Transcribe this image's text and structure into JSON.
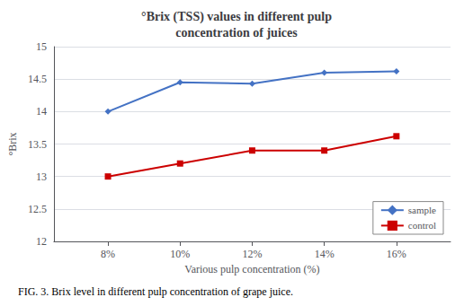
{
  "chart_data": {
    "type": "line",
    "title": "°Brix (TSS) values in different pulp\nconcentration of juices",
    "xlabel": "Various pulp concentration (%)",
    "ylabel": "°Brix",
    "caption": "FIG. 3. Brix level in different pulp concentration of grape juice.",
    "x": [
      8,
      10,
      12,
      14,
      16
    ],
    "series": [
      {
        "name": "sample",
        "color": "#4472C4",
        "marker": "diamond",
        "values": [
          14.0,
          14.45,
          14.43,
          14.6,
          14.62
        ]
      },
      {
        "name": "control",
        "color": "#CC0000",
        "marker": "square",
        "values": [
          13.0,
          13.2,
          13.4,
          13.4,
          13.62
        ]
      }
    ],
    "xlim": [
      6.5,
      17.5
    ],
    "xticks": [
      {
        "value": 8,
        "label": "8%"
      },
      {
        "value": 10,
        "label": "10%"
      },
      {
        "value": 12,
        "label": "12%"
      },
      {
        "value": 14,
        "label": "14%"
      },
      {
        "value": 16,
        "label": "16%"
      }
    ],
    "ylim": [
      12,
      15
    ],
    "yticks": [
      12,
      12.5,
      13,
      13.5,
      14,
      14.5,
      15
    ],
    "grid": true,
    "legend": "lower right"
  }
}
